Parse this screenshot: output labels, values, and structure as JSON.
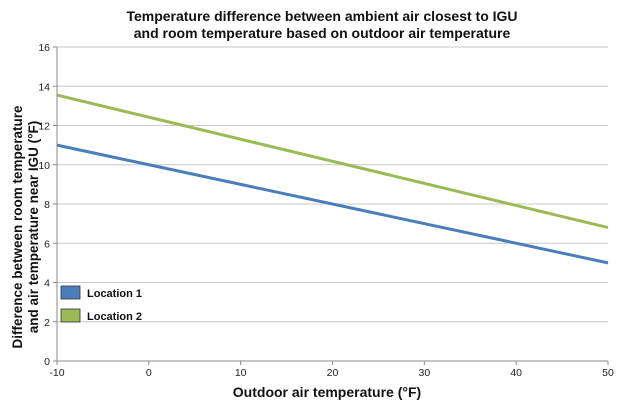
{
  "chart_data": {
    "type": "line",
    "title_lines": [
      "Temperature difference between ambient air closest to IGU",
      "and room temperature based on outdoor air temperature"
    ],
    "xlabel": "Outdoor air temperature (°F)",
    "ylabel_lines": [
      "Difference between room temperature",
      "and air temperature near IGU (°F)"
    ],
    "xlim": [
      -10,
      50
    ],
    "ylim": [
      0,
      16
    ],
    "xticks": [
      -10,
      0,
      10,
      20,
      30,
      40,
      50
    ],
    "yticks": [
      0,
      2,
      4,
      6,
      8,
      10,
      12,
      14,
      16
    ],
    "grid": "horizontal",
    "legend_position": "bottom-left",
    "series": [
      {
        "name": "Location 1",
        "color": "#4a7ebb",
        "x": [
          -10,
          50
        ],
        "y": [
          11.0,
          5.0
        ]
      },
      {
        "name": "Location 2",
        "color": "#9bb955",
        "x": [
          -10,
          50
        ],
        "y": [
          13.55,
          6.8
        ]
      }
    ]
  }
}
